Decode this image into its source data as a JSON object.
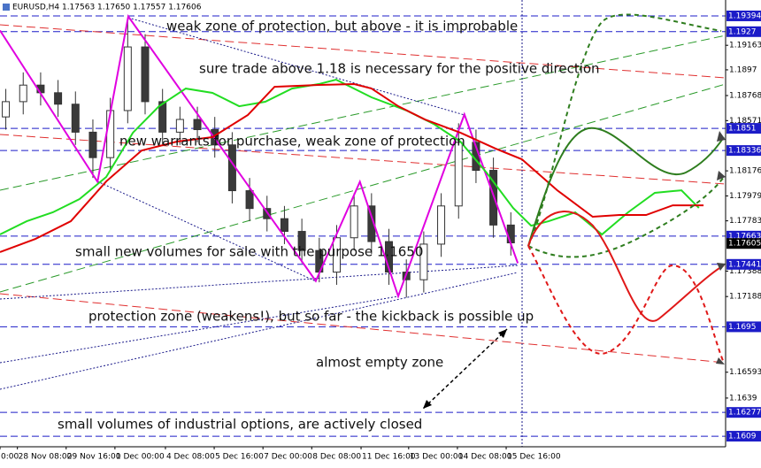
{
  "chart_data": {
    "type": "candlestick",
    "title": "EURUSD,H4  1.17563 1.17650 1.17557 1.17606",
    "xlim": [
      0,
      125
    ],
    "xticks": [
      {
        "value": 0,
        "label": "0:00"
      },
      {
        "value": 3.0,
        "label": "28 Nov 08:00"
      },
      {
        "value": 11.4,
        "label": "29 Nov 16:00"
      },
      {
        "value": 19.8,
        "label": "1 Dec 00:00"
      },
      {
        "value": 28.5,
        "label": "4 Dec 08:00"
      },
      {
        "value": 36.9,
        "label": "5 Dec 16:00"
      },
      {
        "value": 45.3,
        "label": "7 Dec 00:00"
      },
      {
        "value": 53.7,
        "label": "8 Dec 08:00"
      },
      {
        "value": 62.2,
        "label": "11 Dec 16:00"
      },
      {
        "value": 70.4,
        "label": "13 Dec 00:00"
      },
      {
        "value": 78.8,
        "label": "14 Dec 08:00"
      },
      {
        "value": 87.2,
        "label": "15 Dec 16:00"
      }
    ],
    "ylim": [
      1.16007,
      1.19519
    ],
    "yticks": [
      1.19163,
      1.1897,
      1.18768,
      1.18571,
      1.18176,
      1.17979,
      1.17783,
      1.17388,
      1.17188,
      1.16593,
      1.1639
    ],
    "candles": {
      "x": [
        1,
        4,
        7,
        10,
        13,
        16,
        19,
        22,
        25,
        28,
        31,
        34,
        37,
        40,
        43,
        46,
        49,
        52,
        55,
        58,
        61,
        64,
        67,
        70,
        73,
        76,
        79,
        82,
        85,
        88
      ],
      "open": [
        1.186,
        1.1872,
        1.1885,
        1.1879,
        1.187,
        1.1848,
        1.1828,
        1.1865,
        1.1915,
        1.1872,
        1.1848,
        1.1858,
        1.185,
        1.1838,
        1.1802,
        1.1788,
        1.178,
        1.177,
        1.1755,
        1.1738,
        1.1765,
        1.179,
        1.1762,
        1.1738,
        1.1732,
        1.176,
        1.179,
        1.184,
        1.1818,
        1.1775
      ],
      "high": [
        1.1882,
        1.1895,
        1.1895,
        1.1889,
        1.188,
        1.1858,
        1.1875,
        1.1935,
        1.1925,
        1.1882,
        1.1868,
        1.1868,
        1.186,
        1.1848,
        1.1812,
        1.1798,
        1.179,
        1.178,
        1.1765,
        1.1775,
        1.18,
        1.18,
        1.1772,
        1.1748,
        1.177,
        1.18,
        1.1855,
        1.185,
        1.1828,
        1.1785
      ],
      "low": [
        1.185,
        1.1862,
        1.1869,
        1.186,
        1.1838,
        1.1812,
        1.1818,
        1.1855,
        1.1862,
        1.1838,
        1.1838,
        1.184,
        1.1828,
        1.1792,
        1.1778,
        1.177,
        1.176,
        1.1745,
        1.173,
        1.1728,
        1.1755,
        1.1752,
        1.1728,
        1.1718,
        1.1722,
        1.175,
        1.178,
        1.1808,
        1.1765,
        1.1751
      ],
      "close": [
        1.1872,
        1.1885,
        1.1879,
        1.187,
        1.1848,
        1.1828,
        1.1865,
        1.1915,
        1.1872,
        1.1848,
        1.1858,
        1.185,
        1.1838,
        1.1802,
        1.1788,
        1.178,
        1.177,
        1.1755,
        1.1738,
        1.1765,
        1.179,
        1.1762,
        1.1738,
        1.1732,
        1.176,
        1.179,
        1.184,
        1.1818,
        1.1775,
        1.1761
      ]
    },
    "up_color": "#ffffff",
    "down_color": "#3a3a3a",
    "series": [
      {
        "color": "#e000e0",
        "x": [
          0,
          16.8,
          22.1,
          54.4,
          62,
          68.6,
          80,
          89.2
        ],
        "values": [
          1.1928,
          1.1809,
          1.1939,
          1.1731,
          1.1809,
          1.1719,
          1.1862,
          1.1745
        ]
      },
      {
        "color": "#22dd22",
        "x": [
          0,
          4.6,
          9.1,
          13.7,
          18.3,
          22.9,
          27.4,
          32,
          36.6,
          41.2,
          45.7,
          50.3,
          54.9,
          57.9,
          64,
          70.1,
          74.7,
          79.3,
          83.8,
          88.4,
          91.5,
          94.5,
          99.1,
          103.7,
          108.2,
          112.8,
          117.4,
          120.4
        ],
        "values": [
          1.17676,
          1.1778,
          1.1785,
          1.17954,
          1.18128,
          1.18476,
          1.18684,
          1.18823,
          1.18789,
          1.18684,
          1.18719,
          1.18823,
          1.18858,
          1.18893,
          1.18754,
          1.18649,
          1.18545,
          1.18406,
          1.18163,
          1.17884,
          1.17745,
          1.1778,
          1.1785,
          1.17676,
          1.1785,
          1.18003,
          1.18023,
          1.17884
        ]
      },
      {
        "color": "#e00000",
        "x": [
          0,
          6.1,
          12.2,
          18.3,
          24.4,
          30.5,
          36.6,
          42.7,
          47.3,
          54.9,
          61,
          64,
          68.6,
          73.2,
          79.3,
          85.4,
          89.9,
          96,
          102.1,
          106.7,
          111.3,
          115.9,
          121.2
        ],
        "values": [
          1.17537,
          1.17641,
          1.1778,
          1.18093,
          1.18336,
          1.18406,
          1.18441,
          1.18615,
          1.18837,
          1.18851,
          1.18858,
          1.18823,
          1.18684,
          1.1858,
          1.18476,
          1.1835,
          1.18267,
          1.18023,
          1.17815,
          1.17829,
          1.17829,
          1.17905,
          1.17905
        ]
      }
    ],
    "levels": [
      1.19394,
      1.1927,
      1.1851,
      1.18336,
      1.17663,
      1.17441,
      1.1695,
      1.16277,
      1.1609
    ],
    "level_color": "#1c1cc8",
    "current_price": 1.17605,
    "annotations": [
      "weak zone of protection, but above - it is improbable",
      "sure trade above 1.18 is necessary for the positive direction",
      "new warrants for purchase, weak zone of protection",
      "small new volumes for sale with the purpose 1.1650",
      "protection zone (weakens!), but so far - the kickback is possible up",
      "almost empty zone",
      "small volumes of industrial options, are actively closed"
    ]
  }
}
